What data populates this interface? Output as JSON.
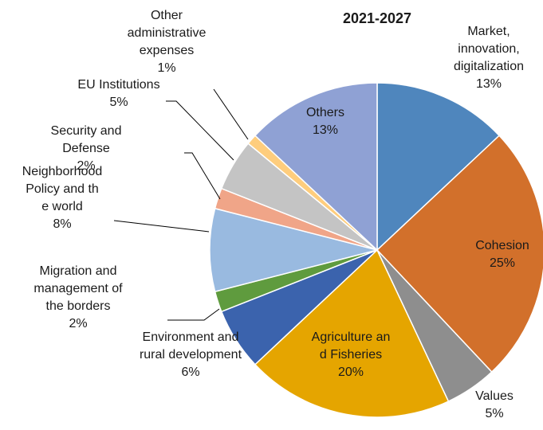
{
  "chart_data": {
    "type": "pie",
    "title": "2021-2027",
    "colors": {
      "slice_border": "#ffffff",
      "leader_line": "#000000"
    },
    "slices": [
      {
        "label": "Market, innovation, digitalization",
        "value": 13,
        "percent_label": "13%",
        "color": "#4f86bd"
      },
      {
        "label": "Cohesion",
        "value": 25,
        "percent_label": "25%",
        "color": "#d2702b"
      },
      {
        "label": "Values",
        "value": 5,
        "percent_label": "5%",
        "color": "#8e8e8e"
      },
      {
        "label": "Agriculture and Fisheries",
        "value": 20,
        "percent_label": "20%",
        "color": "#e5a500"
      },
      {
        "label": "Environment and rural development",
        "value": 6,
        "percent_label": "6%",
        "color": "#3b63ad"
      },
      {
        "label": "Migration and management of the borders",
        "value": 2,
        "percent_label": "2%",
        "color": "#5f9b3e"
      },
      {
        "label": "Neighborhood Policy and the world",
        "value": 8,
        "percent_label": "8%",
        "color": "#99bae0"
      },
      {
        "label": "Security and Defense",
        "value": 2,
        "percent_label": "2%",
        "color": "#f0a588"
      },
      {
        "label": "EU Institutions",
        "value": 5,
        "percent_label": "5%",
        "color": "#c4c4c4"
      },
      {
        "label": "Other administrative expenses",
        "value": 1,
        "percent_label": "1%",
        "color": "#fecd7d"
      },
      {
        "label": "Others",
        "value": 13,
        "percent_label": "13%",
        "color": "#8fa1d4"
      }
    ]
  }
}
